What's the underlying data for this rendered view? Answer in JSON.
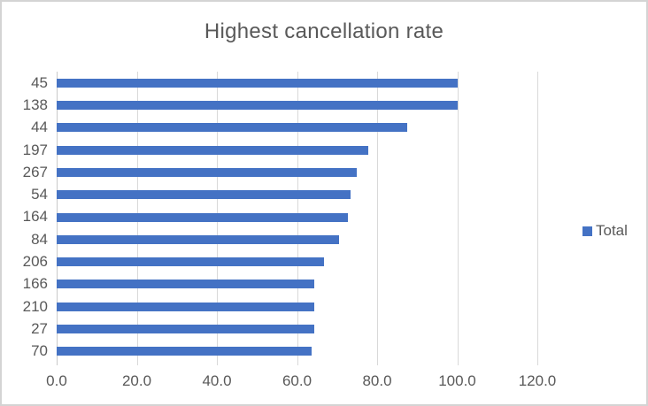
{
  "chart_data": {
    "type": "bar",
    "orientation": "horizontal",
    "title": "Highest cancellation rate",
    "categories": [
      "45",
      "138",
      "44",
      "197",
      "267",
      "54",
      "164",
      "84",
      "206",
      "166",
      "210",
      "27",
      "70"
    ],
    "series": [
      {
        "name": "Total",
        "values": [
          100.0,
          100.0,
          87.5,
          77.8,
          75.0,
          73.3,
          72.7,
          70.6,
          66.7,
          64.3,
          64.3,
          64.3,
          63.6
        ]
      }
    ],
    "xlabel": "",
    "ylabel": "",
    "xlim": [
      0,
      120
    ],
    "xticks": [
      0,
      20,
      40,
      60,
      80,
      100,
      120
    ],
    "xtick_labels": [
      "0.0",
      "20.0",
      "40.0",
      "60.0",
      "80.0",
      "100.0",
      "120.0"
    ],
    "grid": "vertical-only",
    "legend_position": "right",
    "colors": {
      "bar": "#4472c4",
      "gridline": "#d9d9d9",
      "axis_line": "#c9c9c9",
      "text": "#595959",
      "border": "#d4d4d4"
    }
  }
}
